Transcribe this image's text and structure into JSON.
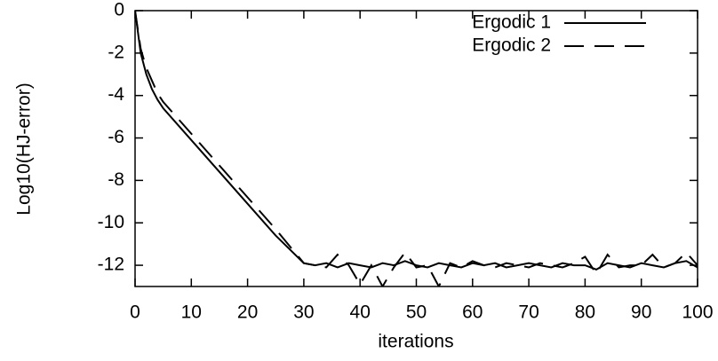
{
  "chart_data": {
    "type": "line",
    "x_label": "iterations",
    "y_label": "Log10(HJ-error)",
    "x": [
      0,
      1,
      2,
      3,
      4,
      5,
      10,
      15,
      20,
      25,
      30,
      32,
      34,
      36,
      38,
      40,
      42,
      44,
      46,
      48,
      50,
      52,
      54,
      56,
      58,
      60,
      62,
      64,
      66,
      68,
      70,
      72,
      74,
      76,
      78,
      80,
      82,
      84,
      86,
      88,
      90,
      92,
      94,
      96,
      98,
      100
    ],
    "series": [
      {
        "name": "Ergodic 1",
        "color": "#000000",
        "dash": "solid",
        "values": [
          0,
          -2,
          -3,
          -3.7,
          -4.2,
          -4.6,
          -6.1,
          -7.6,
          -9.1,
          -10.6,
          -11.9,
          -12.0,
          -11.9,
          -12.1,
          -11.9,
          -12.0,
          -12.1,
          -11.9,
          -12.0,
          -11.8,
          -12.0,
          -12.1,
          -11.9,
          -12.0,
          -12.1,
          -11.9,
          -12.0,
          -11.9,
          -12.1,
          -12.0,
          -11.9,
          -12.0,
          -12.1,
          -11.9,
          -12.0,
          -12.0,
          -12.2,
          -11.9,
          -12.0,
          -12.1,
          -11.9,
          -12.0,
          -12.1,
          -11.9,
          -11.8,
          -12.1
        ]
      },
      {
        "name": "Ergodic 2",
        "color": "#000000",
        "dash": "dashed",
        "values": [
          0,
          -1.8,
          -2.7,
          -3.3,
          -3.9,
          -4.3,
          -5.8,
          -7.3,
          -8.8,
          -10.3,
          -11.9,
          -12.0,
          -12.1,
          -11.5,
          -12.0,
          -12.9,
          -12.0,
          -13.0,
          -12.1,
          -11.4,
          -12.1,
          -12.0,
          -13.0,
          -11.9,
          -12.1,
          -11.8,
          -12.0,
          -12.1,
          -11.9,
          -12.0,
          -12.1,
          -11.9,
          -12.0,
          -12.1,
          -11.9,
          -11.6,
          -12.4,
          -11.5,
          -12.1,
          -12.0,
          -12.0,
          -11.5,
          -12.1,
          -11.9,
          -11.4,
          -12.0
        ]
      }
    ],
    "xlim": [
      0,
      100
    ],
    "xticks": [
      0,
      10,
      20,
      30,
      40,
      50,
      60,
      70,
      80,
      90,
      100
    ],
    "ylim": [
      -13,
      0
    ],
    "yticks": [
      0,
      -2,
      -4,
      -6,
      -8,
      -10,
      -12
    ],
    "grid": false,
    "legend": "top-right"
  }
}
